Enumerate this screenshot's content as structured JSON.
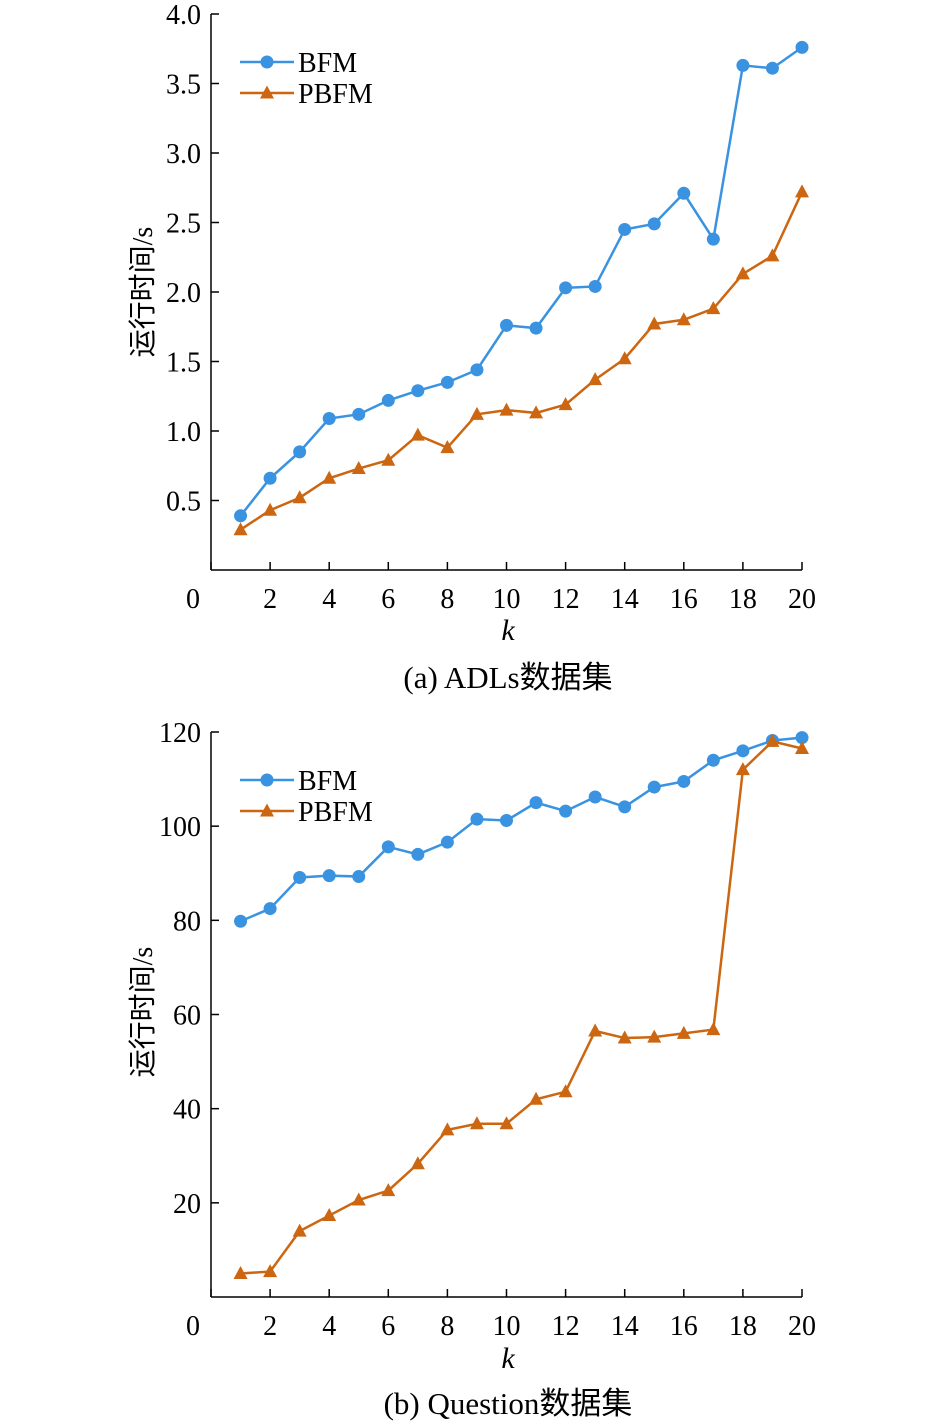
{
  "colors": {
    "bfm": "#3a93e0",
    "pbfm": "#cc6611",
    "axis": "#000000"
  },
  "chart_data": [
    {
      "type": "line",
      "caption": "(a) ADLs数据集",
      "xlabel": "k",
      "ylabel": "运行时间/s",
      "xlim": [
        0,
        20
      ],
      "ylim": [
        0,
        4.0
      ],
      "xticks": [
        0,
        2,
        4,
        6,
        8,
        10,
        12,
        14,
        16,
        18,
        20
      ],
      "yticks": [
        0.5,
        1.0,
        1.5,
        2.0,
        2.5,
        3.0,
        3.5,
        4.0
      ],
      "ytick_labels": [
        "0.5",
        "1.0",
        "1.5",
        "2.0",
        "2.5",
        "3.0",
        "3.5",
        "4.0"
      ],
      "legend_position": "top-left",
      "x": [
        1,
        2,
        3,
        4,
        5,
        6,
        7,
        8,
        9,
        10,
        11,
        12,
        13,
        14,
        15,
        16,
        17,
        18,
        19,
        20
      ],
      "series": [
        {
          "name": "BFM",
          "marker": "circle",
          "color_key": "bfm",
          "values": [
            0.39,
            0.66,
            0.85,
            1.09,
            1.12,
            1.22,
            1.29,
            1.35,
            1.44,
            1.76,
            1.74,
            2.03,
            2.04,
            2.45,
            2.49,
            2.71,
            2.38,
            3.63,
            3.61,
            3.76
          ]
        },
        {
          "name": "PBFM",
          "marker": "triangle",
          "color_key": "pbfm",
          "values": [
            0.29,
            0.43,
            0.52,
            0.66,
            0.73,
            0.79,
            0.97,
            0.88,
            1.12,
            1.15,
            1.13,
            1.19,
            1.37,
            1.52,
            1.77,
            1.8,
            1.88,
            2.13,
            2.26,
            2.72
          ]
        }
      ]
    },
    {
      "type": "line",
      "caption": "(b) Question数据集",
      "xlabel": "k",
      "ylabel": "运行时间/s",
      "xlim": [
        0,
        20
      ],
      "ylim": [
        0,
        120
      ],
      "xticks": [
        0,
        2,
        4,
        6,
        8,
        10,
        12,
        14,
        16,
        18,
        20
      ],
      "yticks": [
        20,
        40,
        60,
        80,
        100,
        120
      ],
      "ytick_labels": [
        "20",
        "40",
        "60",
        "80",
        "100",
        "120"
      ],
      "legend_position": "top-left",
      "x": [
        1,
        2,
        3,
        4,
        5,
        6,
        7,
        8,
        9,
        10,
        11,
        12,
        13,
        14,
        15,
        16,
        17,
        18,
        19,
        20
      ],
      "series": [
        {
          "name": "BFM",
          "marker": "circle",
          "color_key": "bfm",
          "values": [
            79.8,
            82.5,
            89.1,
            89.5,
            89.3,
            95.6,
            94.0,
            96.6,
            101.5,
            101.2,
            105.0,
            103.2,
            106.2,
            104.1,
            108.3,
            109.5,
            114.0,
            116.0,
            118.2,
            118.8
          ]
        },
        {
          "name": "PBFM",
          "marker": "triangle",
          "color_key": "pbfm",
          "values": [
            5.0,
            5.4,
            14.0,
            17.3,
            20.6,
            22.6,
            28.3,
            35.5,
            36.8,
            36.8,
            42.0,
            43.6,
            56.5,
            55.0,
            55.2,
            56.0,
            56.8,
            112.0,
            118.0,
            116.5
          ]
        }
      ]
    }
  ]
}
